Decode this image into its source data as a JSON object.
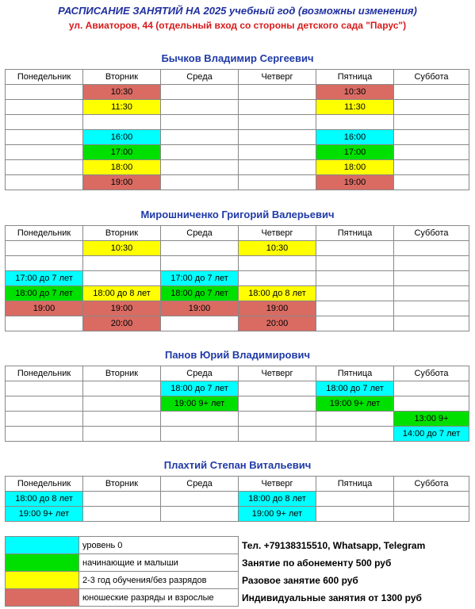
{
  "header": {
    "title": "РАСПИСАНИЕ ЗАНЯТИЙ НА 2025 учебный год (возможны изменения)",
    "address": "ул. Авиаторов, 44 (отдельный вход со стороны детского сада \"Парус\")"
  },
  "days": [
    "Понедельник",
    "Вторник",
    "Среда",
    "Четверг",
    "Пятница",
    "Суббота"
  ],
  "colors": {
    "cyan": "#00ffff",
    "green": "#00e000",
    "yellow": "#ffff00",
    "red": "#d96b63"
  },
  "teachers": [
    {
      "name": "Бычков Владимир Сергеевич",
      "rows": [
        [
          [
            "",
            ""
          ],
          [
            "10:30",
            "red"
          ],
          [
            "",
            ""
          ],
          [
            "",
            ""
          ],
          [
            "10:30",
            "red"
          ],
          [
            "",
            ""
          ]
        ],
        [
          [
            "",
            ""
          ],
          [
            "11:30",
            "yellow"
          ],
          [
            "",
            ""
          ],
          [
            "",
            ""
          ],
          [
            "11:30",
            "yellow"
          ],
          [
            "",
            ""
          ]
        ],
        [
          [
            "",
            ""
          ],
          [
            "",
            ""
          ],
          [
            "",
            ""
          ],
          [
            "",
            ""
          ],
          [
            "",
            ""
          ],
          [
            "",
            ""
          ]
        ],
        [
          [
            "",
            ""
          ],
          [
            "16:00",
            "cyan"
          ],
          [
            "",
            ""
          ],
          [
            "",
            ""
          ],
          [
            "16:00",
            "cyan"
          ],
          [
            "",
            ""
          ]
        ],
        [
          [
            "",
            ""
          ],
          [
            "17:00",
            "green"
          ],
          [
            "",
            ""
          ],
          [
            "",
            ""
          ],
          [
            "17:00",
            "green"
          ],
          [
            "",
            ""
          ]
        ],
        [
          [
            "",
            ""
          ],
          [
            "18:00",
            "yellow"
          ],
          [
            "",
            ""
          ],
          [
            "",
            ""
          ],
          [
            "18:00",
            "yellow"
          ],
          [
            "",
            ""
          ]
        ],
        [
          [
            "",
            ""
          ],
          [
            "19:00",
            "red"
          ],
          [
            "",
            ""
          ],
          [
            "",
            ""
          ],
          [
            "19:00",
            "red"
          ],
          [
            "",
            ""
          ]
        ]
      ]
    },
    {
      "name": "Мирошниченко Григорий Валерьевич",
      "rows": [
        [
          [
            "",
            ""
          ],
          [
            "10:30",
            "yellow"
          ],
          [
            "",
            ""
          ],
          [
            "10:30",
            "yellow"
          ],
          [
            "",
            ""
          ],
          [
            "",
            ""
          ]
        ],
        [
          [
            "",
            ""
          ],
          [
            "",
            ""
          ],
          [
            "",
            ""
          ],
          [
            "",
            ""
          ],
          [
            "",
            ""
          ],
          [
            "",
            ""
          ]
        ],
        [
          [
            "17:00 до 7 лет",
            "cyan"
          ],
          [
            "",
            ""
          ],
          [
            "17:00 до 7 лет",
            "cyan"
          ],
          [
            "",
            ""
          ],
          [
            "",
            ""
          ],
          [
            "",
            ""
          ]
        ],
        [
          [
            "18:00 до 7 лет",
            "green"
          ],
          [
            "18:00 до 8 лет",
            "yellow"
          ],
          [
            "18:00 до 7 лет",
            "green"
          ],
          [
            "18:00 до 8 лет",
            "yellow"
          ],
          [
            "",
            ""
          ],
          [
            "",
            ""
          ]
        ],
        [
          [
            "19:00",
            "red"
          ],
          [
            "19:00",
            "red"
          ],
          [
            "19:00",
            "red"
          ],
          [
            "19:00",
            "red"
          ],
          [
            "",
            ""
          ],
          [
            "",
            ""
          ]
        ],
        [
          [
            "",
            ""
          ],
          [
            "20:00",
            "red"
          ],
          [
            "",
            ""
          ],
          [
            "20:00",
            "red"
          ],
          [
            "",
            ""
          ],
          [
            "",
            ""
          ]
        ]
      ]
    },
    {
      "name": "Панов Юрий Владимирович",
      "rows": [
        [
          [
            "",
            ""
          ],
          [
            "",
            ""
          ],
          [
            "18:00 до 7 лет",
            "cyan"
          ],
          [
            "",
            ""
          ],
          [
            "18:00 до 7 лет",
            "cyan"
          ],
          [
            "",
            ""
          ]
        ],
        [
          [
            "",
            ""
          ],
          [
            "",
            ""
          ],
          [
            "19:00 9+ лет",
            "green"
          ],
          [
            "",
            ""
          ],
          [
            "19:00 9+ лет",
            "green"
          ],
          [
            "",
            ""
          ]
        ],
        [
          [
            "",
            ""
          ],
          [
            "",
            ""
          ],
          [
            "",
            ""
          ],
          [
            "",
            ""
          ],
          [
            "",
            ""
          ],
          [
            "13:00 9+",
            "green"
          ]
        ],
        [
          [
            "",
            ""
          ],
          [
            "",
            ""
          ],
          [
            "",
            ""
          ],
          [
            "",
            ""
          ],
          [
            "",
            ""
          ],
          [
            "14:00 до 7 лет",
            "cyan"
          ]
        ]
      ]
    },
    {
      "name": "Плахтий Степан Витальевич",
      "rows": [
        [
          [
            "18:00 до 8 лет",
            "cyan"
          ],
          [
            "",
            ""
          ],
          [
            "",
            ""
          ],
          [
            "18:00 до 8 лет",
            "cyan"
          ],
          [
            "",
            ""
          ],
          [
            "",
            ""
          ]
        ],
        [
          [
            "19:00 9+ лет",
            "cyan"
          ],
          [
            "",
            ""
          ],
          [
            "",
            ""
          ],
          [
            "19:00 9+ лет",
            "cyan"
          ],
          [
            "",
            ""
          ],
          [
            "",
            ""
          ]
        ]
      ]
    }
  ],
  "legend": [
    {
      "color": "cyan",
      "label": "уровень 0",
      "info": "Тел. +79138315510, Whatsapp, Telegram"
    },
    {
      "color": "green",
      "label": "начинающие и малыши",
      "info": "Занятие по абонементу 500 руб"
    },
    {
      "color": "yellow",
      "label": "2-3 год обучения/без разрядов",
      "info": "Разовое занятие 600 руб"
    },
    {
      "color": "red",
      "label": "юношеские разряды и взрослые",
      "info": "Индивидуальные занятия от 1300 руб"
    }
  ]
}
